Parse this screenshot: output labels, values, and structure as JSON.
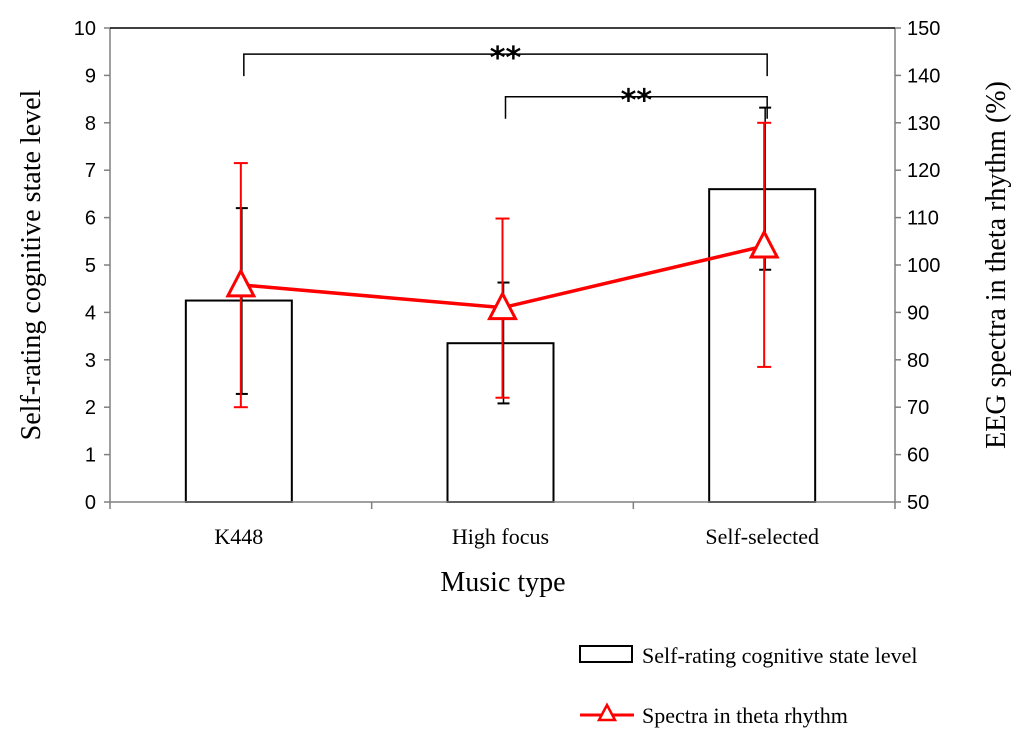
{
  "chart_data": {
    "type": "bar+line",
    "categories": [
      "K448",
      "High focus",
      "Self-selected"
    ],
    "xlabel": "Music type",
    "ylabel_left": "Self-rating cognitive state level",
    "ylabel_right": "EEG spectra in theta rhythm (%)",
    "ylim_left": [
      0,
      10
    ],
    "yticks_left": [
      0,
      1,
      2,
      3,
      4,
      5,
      6,
      7,
      8,
      9,
      10
    ],
    "ylim_right": [
      50,
      150
    ],
    "yticks_right": [
      50,
      60,
      70,
      80,
      90,
      100,
      110,
      120,
      130,
      140,
      150
    ],
    "series": [
      {
        "name": "Self-rating cognitive state level",
        "type": "bar",
        "axis": "left",
        "color": "#000000",
        "values": [
          4.25,
          3.35,
          6.6
        ],
        "err_low": [
          2.28,
          2.08,
          4.9
        ],
        "err_high": [
          6.2,
          4.63,
          8.32
        ]
      },
      {
        "name": "Spectra in theta rhythm",
        "type": "line",
        "axis": "right",
        "color": "#ff0000",
        "marker": "triangle-open",
        "values": [
          95.8,
          91.0,
          104.0
        ],
        "err_low": [
          70.0,
          72.0,
          78.5
        ],
        "err_high": [
          121.5,
          109.8,
          130.0
        ]
      }
    ],
    "significance": [
      {
        "from": "K448",
        "to": "Self-selected",
        "level": 9.45,
        "label": "**"
      },
      {
        "from": "High focus",
        "to": "Self-selected",
        "level": 8.55,
        "label": "**"
      }
    ],
    "legend_position": "bottom-right"
  }
}
